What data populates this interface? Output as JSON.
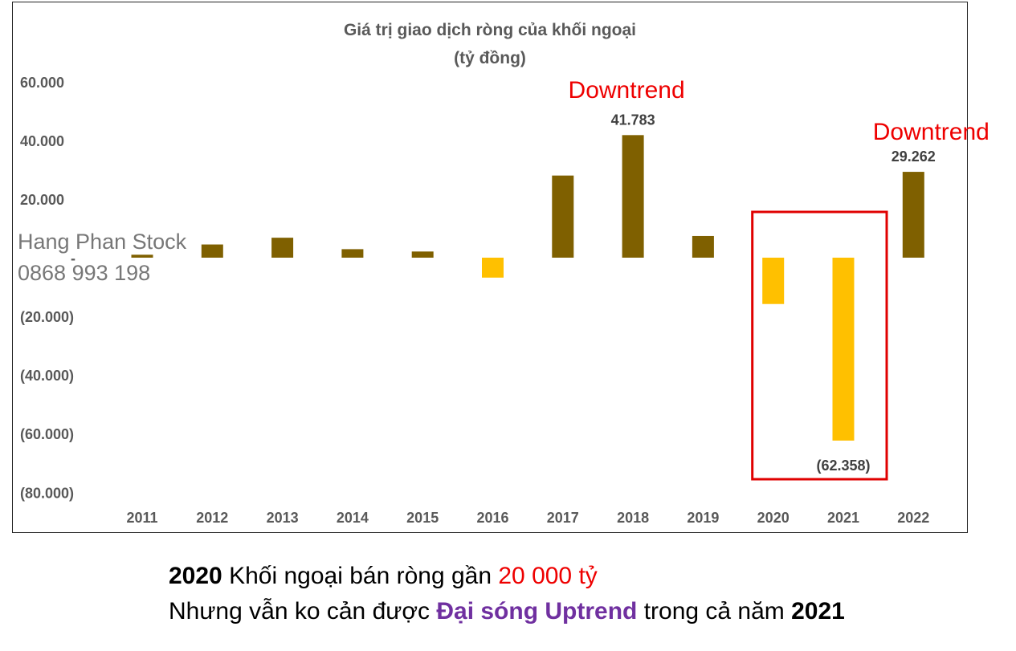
{
  "chart_data": {
    "type": "bar",
    "title": "Giá trị giao dịch ròng của khối ngoại",
    "subtitle": "(tỷ đồng)",
    "categories": [
      "2011",
      "2012",
      "2013",
      "2014",
      "2015",
      "2016",
      "2017",
      "2018",
      "2019",
      "2020",
      "2021",
      "2022"
    ],
    "values": [
      1000,
      4500,
      6800,
      2900,
      2100,
      -6800,
      28000,
      41783,
      7400,
      -15800,
      -62358,
      29262
    ],
    "data_labels": {
      "2018": "41.783",
      "2021": "(62.358)",
      "2022": "29.262"
    },
    "ylim": [
      -80000,
      60000
    ],
    "yticks": [
      60000,
      40000,
      20000,
      0,
      -20000,
      -40000,
      -60000,
      -80000
    ],
    "ytick_labels": [
      "60.000",
      "40.000",
      "20.000",
      "-",
      "(20.000)",
      "(40.000)",
      "(60.000)",
      "(80.000)"
    ],
    "grid": false,
    "colors": {
      "positive": "#7f6000",
      "negative": "#ffc000"
    },
    "annotations": [
      {
        "text": "Downtrend",
        "near": "2018",
        "color": "#ee0000"
      },
      {
        "text": "Downtrend",
        "near": "2022",
        "color": "#ee0000"
      }
    ],
    "highlight_box": {
      "from": "2020",
      "to": "2021",
      "color": "#e00000"
    }
  },
  "watermark": {
    "line1": "Hang Phan Stock",
    "line2": "0868 993 198"
  },
  "caption": {
    "line1": {
      "year": "2020",
      "text": " Khối ngoại bán ròng gần ",
      "amount": "20 000 tỷ"
    },
    "line2": {
      "pre": "Nhưng vẫn ko cản được ",
      "wave": "Đại sóng Uptrend",
      "mid": " trong cả năm ",
      "year": "2021"
    }
  }
}
